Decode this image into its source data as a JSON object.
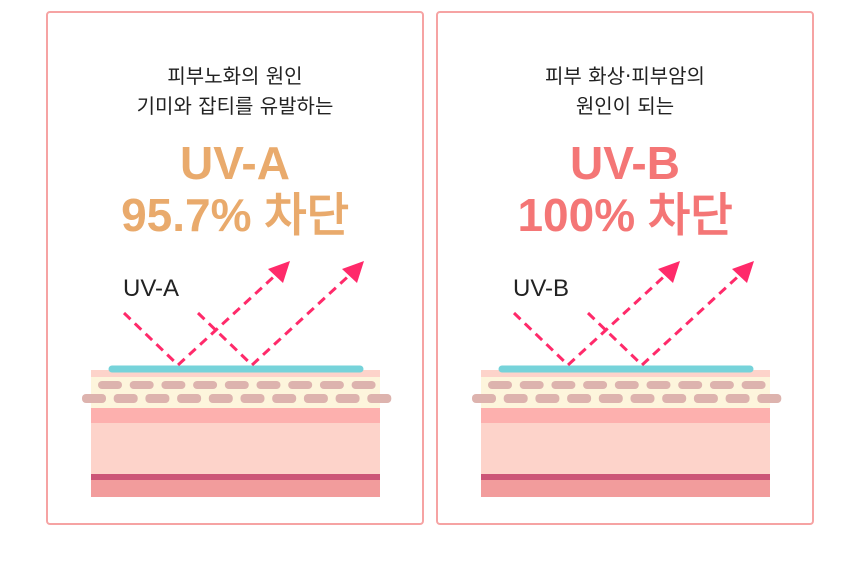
{
  "cards": [
    {
      "subtitle_line1": "피부노화의 원인",
      "subtitle_line2": "기미와 잡티를 유발하는",
      "headline_line1": "UV-A",
      "headline_line2": "95.7% 차단",
      "ray_label": "UV-A",
      "accent": "#e9aa6c"
    },
    {
      "subtitle_line1": "피부 화상·피부암의",
      "subtitle_line2": "원인이 되는",
      "headline_line1": "UV-B",
      "headline_line2": "100% 차단",
      "ray_label": "UV-B",
      "accent": "#f47676"
    }
  ],
  "colors": {
    "border": "#f6a3a3",
    "arrow": "#ff2a6a",
    "shield": "#76d3da",
    "skin_top": "#fdd3ca",
    "skin_cream": "#fdf5dc",
    "cells": "#ddb3ae",
    "band": "#fdb0ae",
    "vessel": "#cc5577",
    "bottom": "#f29c9c"
  }
}
